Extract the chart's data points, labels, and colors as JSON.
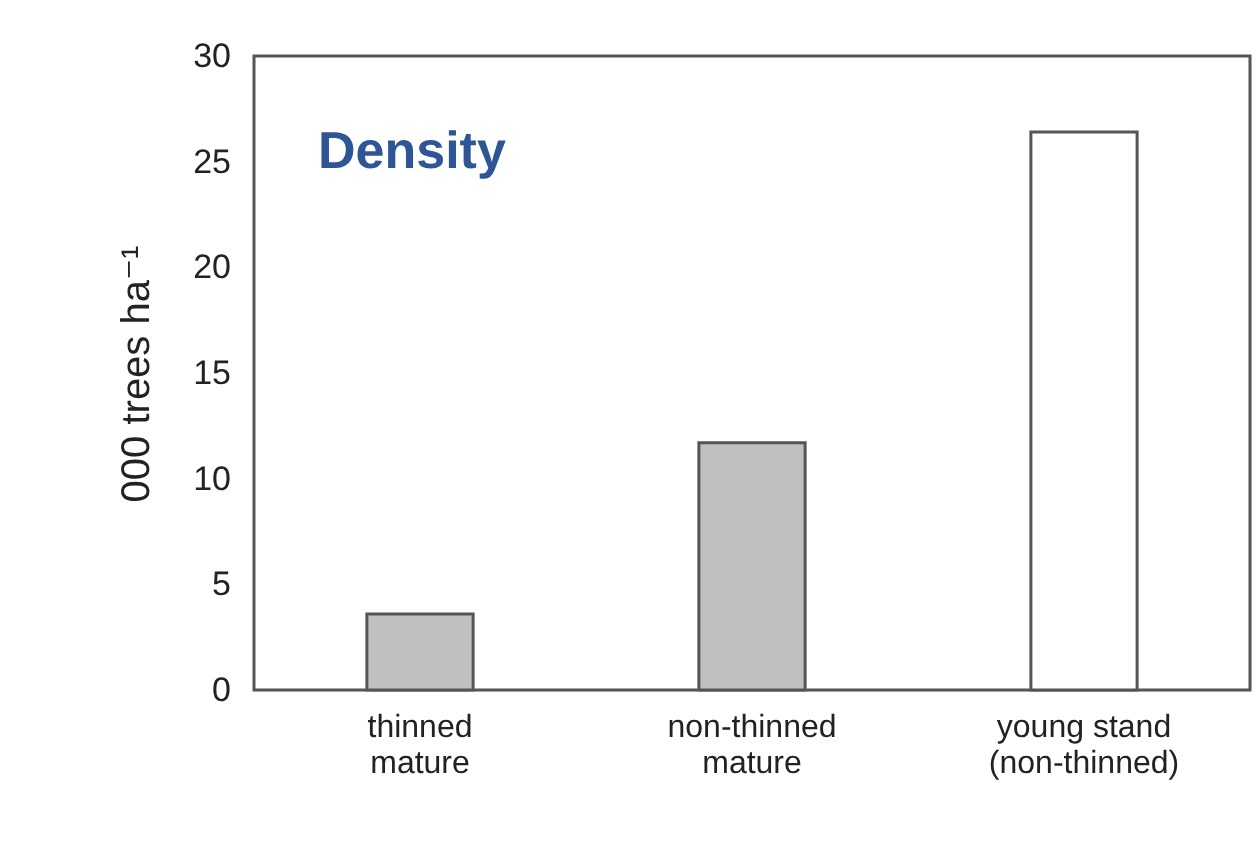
{
  "chart_data": {
    "type": "bar",
    "title": "Density",
    "ylabel": "000 trees ha⁻¹",
    "categories": [
      "thinned\nmature",
      "non-thinned\nmature",
      "young stand\n(non-thinned)"
    ],
    "values": [
      3.6,
      11.7,
      26.4
    ],
    "colors": [
      "#c0c0c0",
      "#c0c0c0",
      "#ffffff"
    ],
    "ylim": [
      0,
      30
    ],
    "yticks": [
      0,
      5,
      10,
      15,
      20,
      25,
      30
    ],
    "grid": false
  }
}
